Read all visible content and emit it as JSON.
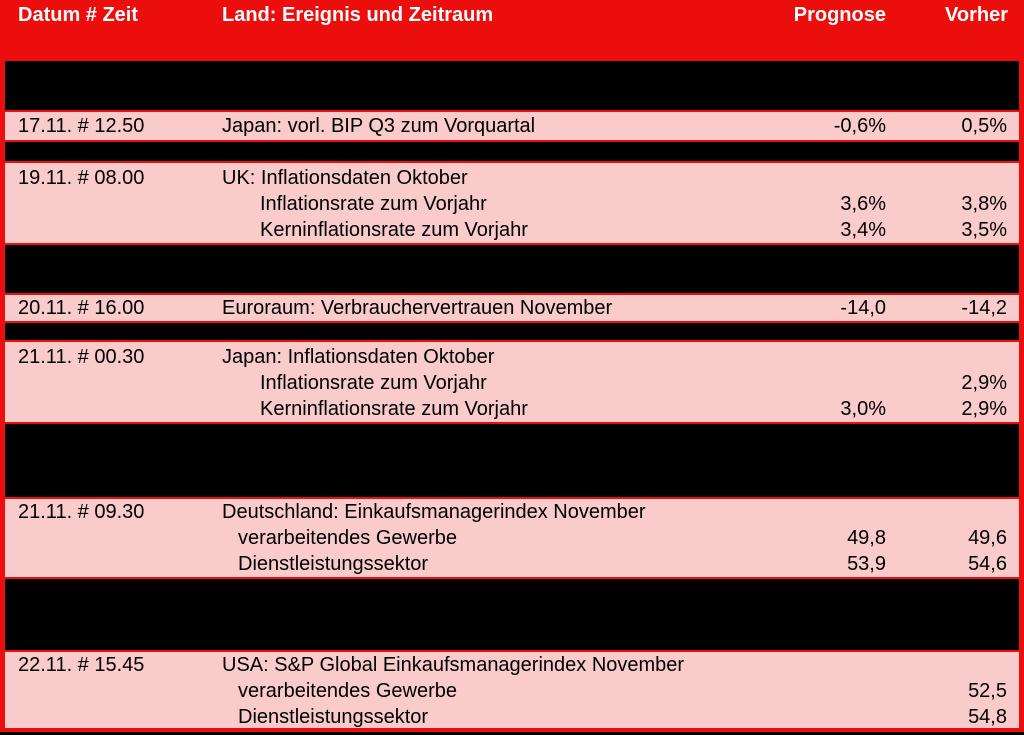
{
  "header": {
    "col_date": "Datum # Zeit",
    "col_event": "Land: Ereignis und Zeitraum",
    "col_forecast": "Prognose",
    "col_previous": "Vorher"
  },
  "colors": {
    "background_red": "#ec0d0d",
    "row_pink": "#f9cbcb",
    "band_black": "#000000",
    "header_text": "#ffffff",
    "row_text": "#000000"
  },
  "rows": [
    {
      "type": "band",
      "height": 49
    },
    {
      "type": "event",
      "height": 28,
      "pad_top": 1,
      "date": "17.11. # 12.50",
      "lines": [
        {
          "text": "Japan: vorl. BIP Q3 zum Vorquartal",
          "indent": "event",
          "forecast": "-0,6%",
          "previous": "0,5%"
        }
      ]
    },
    {
      "type": "band",
      "height": 19
    },
    {
      "type": "event",
      "height": 80,
      "pad_top": 2,
      "date": "19.11. # 08.00",
      "lines": [
        {
          "text": "UK: Inflationsdaten Oktober",
          "indent": "event"
        },
        {
          "text": "Inflationsrate zum Vorjahr",
          "indent": "sub-deep",
          "forecast": "3,6%",
          "previous": "3,8%"
        },
        {
          "text": "Kerninflationsrate zum Vorjahr",
          "indent": "sub-deep",
          "forecast": "3,4%",
          "previous": "3,5%"
        }
      ]
    },
    {
      "type": "band",
      "height": 48
    },
    {
      "type": "event",
      "height": 26,
      "pad_top": 0,
      "date": "20.11. # 16.00",
      "lines": [
        {
          "text": "Euroraum: Verbrauchervertrauen November",
          "indent": "event",
          "forecast": "-14,0",
          "previous": "-14,2"
        }
      ]
    },
    {
      "type": "band",
      "height": 17
    },
    {
      "type": "event",
      "height": 80,
      "pad_top": 2,
      "date": "21.11. # 00.30",
      "lines": [
        {
          "text": "Japan: Inflationsdaten Oktober",
          "indent": "event"
        },
        {
          "text": "Inflationsrate zum Vorjahr",
          "indent": "sub-deep",
          "previous": "2,9%"
        },
        {
          "text": "Kerninflationsrate zum Vorjahr",
          "indent": "sub-deep",
          "forecast": "3,0%",
          "previous": "2,9%"
        }
      ]
    },
    {
      "type": "band",
      "height": 73
    },
    {
      "type": "event",
      "height": 78,
      "pad_top": 0,
      "date": "21.11. # 09.30",
      "lines": [
        {
          "text": "Deutschland: Einkaufsmanagerindex November",
          "indent": "event"
        },
        {
          "text": "verarbeitendes Gewerbe",
          "indent": "sub",
          "forecast": "49,8",
          "previous": "49,6"
        },
        {
          "text": "Dienstleistungssektor",
          "indent": "sub",
          "forecast": "53,9",
          "previous": "54,6"
        }
      ]
    },
    {
      "type": "band",
      "height": 71
    },
    {
      "type": "event",
      "height": 76,
      "pad_top": 0,
      "date": "22.11. # 15.45",
      "lines": [
        {
          "text": "USA: S&P Global Einkaufsmanagerindex November",
          "indent": "event"
        },
        {
          "text": "verarbeitendes Gewerbe",
          "indent": "sub",
          "previous": "52,5"
        },
        {
          "text": "Dienstleistungssektor",
          "indent": "sub",
          "previous": "54,8"
        }
      ]
    }
  ]
}
